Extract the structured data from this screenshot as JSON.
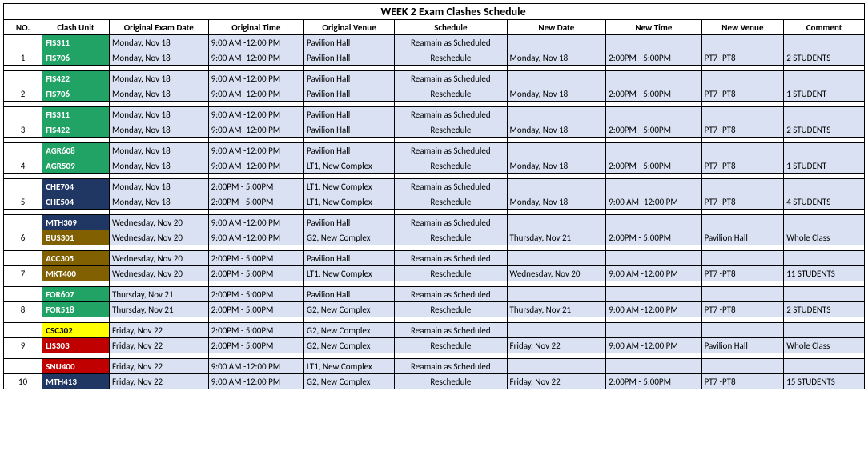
{
  "title": "WEEK 2 Exam Clashes Schedule",
  "headers": {
    "no": "NO.",
    "unit": "Clash Unit",
    "origDate": "Original Exam Date",
    "origTime": "Original Time",
    "origVenue": "Original Venue",
    "schedule": "Schedule",
    "newDate": "New Date",
    "newTime": "New Time",
    "newVenue": "New Venue",
    "comment": "Comment"
  },
  "labels": {
    "remain": "Reamain as Scheduled",
    "resched": "Reschedule"
  },
  "colors": {
    "green": "#21a366",
    "navy": "#203764",
    "olive": "#806000",
    "yellow": "#ffff00",
    "red": "#c00000",
    "remainBg": "#d9e1f2"
  },
  "groups": [
    {
      "no": "1",
      "rows": [
        {
          "unit": "FIS311",
          "unitColor": "green",
          "unitFg": "#ffffff",
          "origDate": "Monday, Nov 18",
          "origTime": "9:00 AM -12:00 PM",
          "origVenue": "Pavilion Hall",
          "type": "remain",
          "newDate": "",
          "newTime": "",
          "newVenue": "",
          "comment": ""
        },
        {
          "unit": "FIS706",
          "unitColor": "green",
          "unitFg": "#ffffff",
          "origDate": "Monday, Nov 18",
          "origTime": "9:00 AM -12:00 PM",
          "origVenue": "Pavilion Hall",
          "type": "resched",
          "newDate": "Monday, Nov 18",
          "newTime": "2:00PM - 5:00PM",
          "newVenue": "PT7 -PT8",
          "comment": "2 STUDENTS"
        }
      ]
    },
    {
      "no": "2",
      "rows": [
        {
          "unit": "FIS422",
          "unitColor": "green",
          "unitFg": "#ffffff",
          "origDate": "Monday, Nov 18",
          "origTime": "9:00 AM -12:00 PM",
          "origVenue": "Pavilion Hall",
          "type": "remain",
          "newDate": "",
          "newTime": "",
          "newVenue": "",
          "comment": ""
        },
        {
          "unit": "FIS706",
          "unitColor": "green",
          "unitFg": "#ffffff",
          "origDate": "Monday, Nov 18",
          "origTime": "9:00 AM -12:00 PM",
          "origVenue": "Pavilion Hall",
          "type": "resched",
          "newDate": "Monday, Nov 18",
          "newTime": "2:00PM - 5:00PM",
          "newVenue": "PT7 -PT8",
          "comment": "1 STUDENT"
        }
      ]
    },
    {
      "no": "3",
      "rows": [
        {
          "unit": "FIS311",
          "unitColor": "green",
          "unitFg": "#ffffff",
          "origDate": "Monday, Nov 18",
          "origTime": "9:00 AM -12:00 PM",
          "origVenue": "Pavilion Hall",
          "type": "remain",
          "newDate": "",
          "newTime": "",
          "newVenue": "",
          "comment": ""
        },
        {
          "unit": "FIS422",
          "unitColor": "green",
          "unitFg": "#ffffff",
          "origDate": "Monday, Nov 18",
          "origTime": "9:00 AM -12:00 PM",
          "origVenue": "Pavilion Hall",
          "type": "resched",
          "newDate": "Monday, Nov 18",
          "newTime": "2:00PM - 5:00PM",
          "newVenue": "PT7 -PT8",
          "comment": "2 STUDENTS"
        }
      ]
    },
    {
      "no": "4",
      "rows": [
        {
          "unit": "AGR608",
          "unitColor": "green",
          "unitFg": "#ffffff",
          "origDate": "Monday, Nov 18",
          "origTime": "9:00 AM -12:00 PM",
          "origVenue": "Pavilion Hall",
          "type": "remain",
          "newDate": "",
          "newTime": "",
          "newVenue": "",
          "comment": ""
        },
        {
          "unit": "AGR509",
          "unitColor": "green",
          "unitFg": "#ffffff",
          "origDate": "Monday, Nov 18",
          "origTime": "9:00 AM -12:00 PM",
          "origVenue": "LT1, New Complex",
          "type": "resched",
          "newDate": "Monday, Nov 18",
          "newTime": "2:00PM - 5:00PM",
          "newVenue": "PT7 -PT8",
          "comment": "1 STUDENT"
        }
      ]
    },
    {
      "no": "5",
      "rows": [
        {
          "unit": "CHE704",
          "unitColor": "navy",
          "unitFg": "#ffffff",
          "origDate": "Monday, Nov 18",
          "origTime": "2:00PM - 5:00PM",
          "origVenue": "LT1, New Complex",
          "type": "remain",
          "newDate": "",
          "newTime": "",
          "newVenue": "",
          "comment": ""
        },
        {
          "unit": "CHE504",
          "unitColor": "navy",
          "unitFg": "#ffffff",
          "origDate": "Monday, Nov 18",
          "origTime": "2:00PM - 5:00PM",
          "origVenue": "LT1, New Complex",
          "type": "resched",
          "newDate": "Monday, Nov 18",
          "newTime": "9:00 AM -12:00 PM",
          "newVenue": "PT7 -PT8",
          "comment": "4 STUDENTS"
        }
      ]
    },
    {
      "no": "6",
      "rows": [
        {
          "unit": "MTH309",
          "unitColor": "navy",
          "unitFg": "#ffffff",
          "origDate": "Wednesday, Nov 20",
          "origTime": "9:00 AM -12:00 PM",
          "origVenue": "Pavilion Hall",
          "type": "remain",
          "newDate": "",
          "newTime": "",
          "newVenue": "",
          "comment": ""
        },
        {
          "unit": "BUS301",
          "unitColor": "olive",
          "unitFg": "#ffffff",
          "origDate": "Wednesday, Nov 20",
          "origTime": "9:00 AM -12:00 PM",
          "origVenue": "G2, New Complex",
          "type": "resched",
          "newDate": "Thursday, Nov 21",
          "newTime": "2:00PM - 5:00PM",
          "newVenue": "Pavilion Hall",
          "comment": "Whole Class"
        }
      ]
    },
    {
      "no": "7",
      "rows": [
        {
          "unit": "ACC305",
          "unitColor": "olive",
          "unitFg": "#ffffff",
          "origDate": "Wednesday, Nov 20",
          "origTime": "2:00PM - 5:00PM",
          "origVenue": "Pavilion Hall",
          "type": "remain",
          "newDate": "",
          "newTime": "",
          "newVenue": "",
          "comment": ""
        },
        {
          "unit": "MKT400",
          "unitColor": "olive",
          "unitFg": "#ffffff",
          "origDate": "Wednesday, Nov 20",
          "origTime": "2:00PM - 5:00PM",
          "origVenue": "LT1, New Complex",
          "type": "resched",
          "newDate": "Wednesday, Nov 20",
          "newTime": "9:00 AM -12:00 PM",
          "newVenue": "PT7 -PT8",
          "comment": "11 STUDENTS"
        }
      ]
    },
    {
      "no": "8",
      "rows": [
        {
          "unit": "FOR607",
          "unitColor": "green",
          "unitFg": "#ffffff",
          "origDate": "Thursday, Nov 21",
          "origTime": "2:00PM - 5:00PM",
          "origVenue": "Pavilion Hall",
          "type": "remain",
          "newDate": "",
          "newTime": "",
          "newVenue": "",
          "comment": ""
        },
        {
          "unit": "FOR518",
          "unitColor": "green",
          "unitFg": "#ffffff",
          "origDate": "Thursday, Nov 21",
          "origTime": "2:00PM - 5:00PM",
          "origVenue": "G2, New Complex",
          "type": "resched",
          "newDate": "Thursday, Nov 21",
          "newTime": "9:00 AM -12:00 PM",
          "newVenue": "PT7 -PT8",
          "comment": "2 STUDENTS"
        }
      ]
    },
    {
      "no": "9",
      "rows": [
        {
          "unit": "CSC302",
          "unitColor": "yellow",
          "unitFg": "#000000",
          "origDate": "Friday, Nov 22",
          "origTime": "2:00PM - 5:00PM",
          "origVenue": "G2, New Complex",
          "type": "remain",
          "newDate": "",
          "newTime": "",
          "newVenue": "",
          "comment": ""
        },
        {
          "unit": "LIS303",
          "unitColor": "red",
          "unitFg": "#ffffff",
          "origDate": "Friday, Nov 22",
          "origTime": "2:00PM - 5:00PM",
          "origVenue": "G2, New Complex",
          "type": "resched",
          "newDate": "Friday, Nov 22",
          "newTime": "9:00 AM -12:00 PM",
          "newVenue": "Pavilion Hall",
          "comment": "Whole Class"
        }
      ]
    },
    {
      "no": "10",
      "rows": [
        {
          "unit": "SNU400",
          "unitColor": "red",
          "unitFg": "#ffffff",
          "origDate": "Friday, Nov 22",
          "origTime": "9:00 AM -12:00 PM",
          "origVenue": "LT1, New Complex",
          "type": "remain",
          "newDate": "",
          "newTime": "",
          "newVenue": "",
          "comment": ""
        },
        {
          "unit": "MTH413",
          "unitColor": "navy",
          "unitFg": "#ffffff",
          "origDate": "Friday, Nov 22",
          "origTime": "9:00 AM -12:00 PM",
          "origVenue": "G2, New Complex",
          "type": "resched",
          "newDate": "Friday, Nov 22",
          "newTime": "2:00PM - 5:00PM",
          "newVenue": "PT7 -PT8",
          "comment": "15 STUDENTS"
        }
      ]
    }
  ]
}
